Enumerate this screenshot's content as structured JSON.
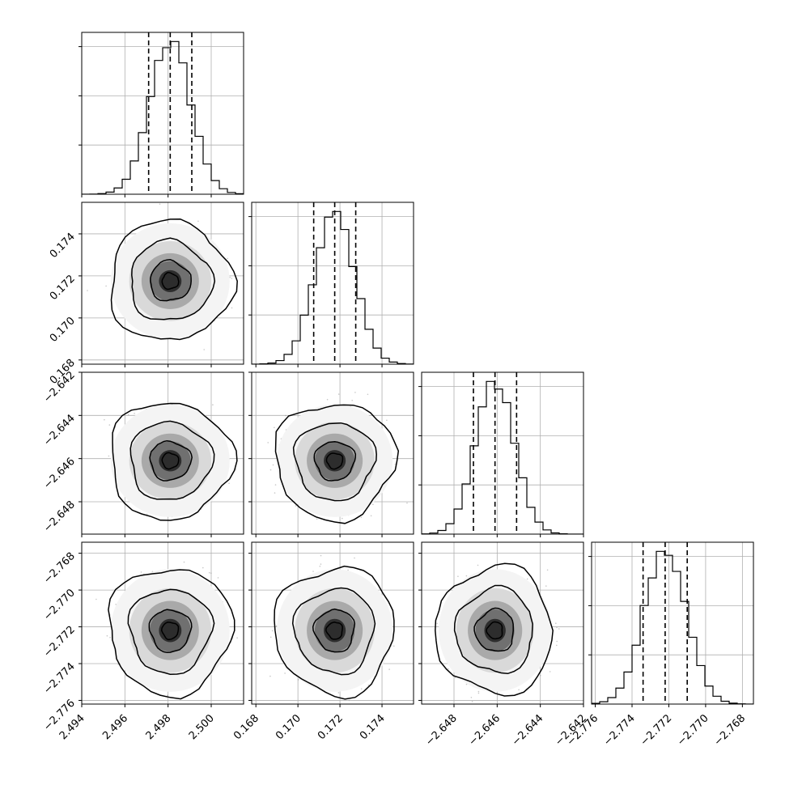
{
  "chart_data": {
    "type": "corner",
    "params": [
      {
        "range": [
          2.494,
          2.5015
        ],
        "ticks": [
          2.494,
          2.496,
          2.498,
          2.5
        ],
        "tick_labels": [
          "2.494",
          "2.496",
          "2.498",
          "2.500"
        ],
        "mean": 2.4981,
        "sd": 0.00095,
        "quantiles": [
          2.4971,
          2.4981,
          2.4991
        ]
      },
      {
        "range": [
          0.1678,
          0.1755
        ],
        "ticks": [
          0.168,
          0.17,
          0.172,
          0.174
        ],
        "tick_labels": [
          "0.168",
          "0.170",
          "0.172",
          "0.174"
        ],
        "mean": 0.17175,
        "sd": 0.00095,
        "quantiles": [
          0.17075,
          0.17175,
          0.17275
        ]
      },
      {
        "range": [
          -2.6495,
          -2.642
        ],
        "ticks": [
          -2.648,
          -2.646,
          -2.644,
          -2.642
        ],
        "tick_labels": [
          "−2.648",
          "−2.646",
          "−2.644",
          "−2.642"
        ],
        "mean": -2.6461,
        "sd": 0.0009,
        "quantiles": [
          -2.6471,
          -2.6461,
          -2.6451
        ]
      },
      {
        "range": [
          -2.7762,
          -2.7674
        ],
        "ticks": [
          -2.776,
          -2.774,
          -2.772,
          -2.77,
          -2.768
        ],
        "tick_labels": [
          "−2.776",
          "−2.774",
          "−2.772",
          "−2.770",
          "−2.768"
        ],
        "mean": -2.7722,
        "sd": 0.00115,
        "quantiles": [
          -2.7734,
          -2.7722,
          -2.771
        ]
      }
    ],
    "grid": true,
    "hist_bins": 20,
    "contour_levels": [
      0.39,
      0.86,
      0.99
    ],
    "colors": {
      "line": "#000000",
      "grid": "#b0b0b0",
      "scatter": "#9a9a9a"
    }
  }
}
